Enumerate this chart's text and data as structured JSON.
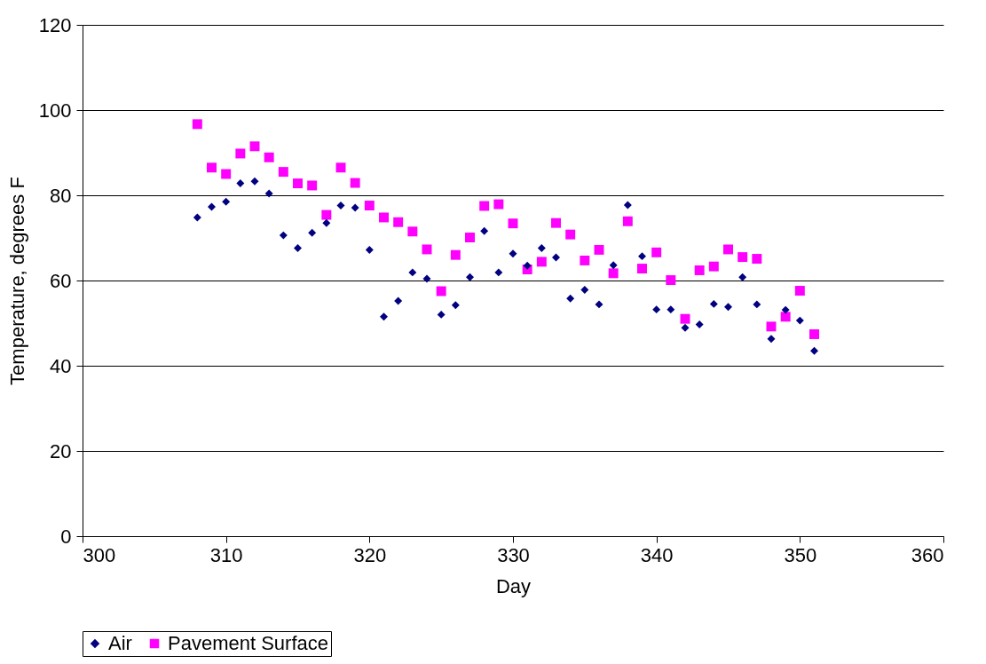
{
  "chart_data": {
    "type": "scatter",
    "xlabel": "Day",
    "ylabel": "Temperature, degrees F",
    "x": [
      308,
      309,
      310,
      311,
      312,
      313,
      314,
      315,
      316,
      317,
      318,
      319,
      320,
      321,
      322,
      323,
      324,
      325,
      326,
      327,
      328,
      329,
      330,
      331,
      332,
      333,
      334,
      335,
      336,
      337,
      338,
      339,
      340,
      341,
      342,
      343,
      344,
      345,
      346,
      347,
      348,
      349,
      350,
      351
    ],
    "series": [
      {
        "name": "Air",
        "color": "#000080",
        "marker": "diamond",
        "values": [
          74.8,
          77.3,
          78.5,
          82.8,
          83.3,
          80.4,
          70.6,
          67.6,
          71.2,
          73.5,
          77.6,
          77.1,
          67.2,
          51.5,
          55.2,
          61.9,
          60.4,
          52.0,
          54.2,
          60.8,
          71.6,
          61.9,
          66.3,
          63.5,
          67.6,
          65.4,
          55.8,
          57.8,
          54.4,
          63.6,
          77.7,
          65.7,
          53.2,
          53.2,
          48.9,
          49.7,
          54.5,
          53.8,
          60.8,
          54.4,
          46.3,
          53.1,
          50.6,
          43.5
        ]
      },
      {
        "name": "Pavement Surface",
        "color": "#ff00ff",
        "marker": "square",
        "values": [
          96.7,
          86.5,
          85.0,
          89.8,
          91.5,
          88.9,
          85.5,
          82.8,
          82.3,
          75.4,
          86.5,
          82.9,
          77.6,
          74.8,
          73.7,
          71.5,
          67.3,
          57.5,
          66.0,
          70.1,
          77.5,
          77.9,
          73.4,
          62.6,
          64.4,
          73.5,
          70.8,
          64.7,
          67.2,
          61.7,
          73.9,
          62.8,
          66.6,
          60.1,
          51.0,
          62.4,
          63.3,
          67.3,
          65.5,
          65.1,
          49.2,
          51.5,
          57.6,
          47.4
        ]
      }
    ],
    "xlim": [
      300,
      360
    ],
    "xticks": [
      300,
      310,
      320,
      330,
      340,
      350,
      360
    ],
    "ylim": [
      0,
      120
    ],
    "yticks": [
      0,
      20,
      40,
      60,
      80,
      100,
      120
    ],
    "grid": "y",
    "legend": "bottom"
  }
}
